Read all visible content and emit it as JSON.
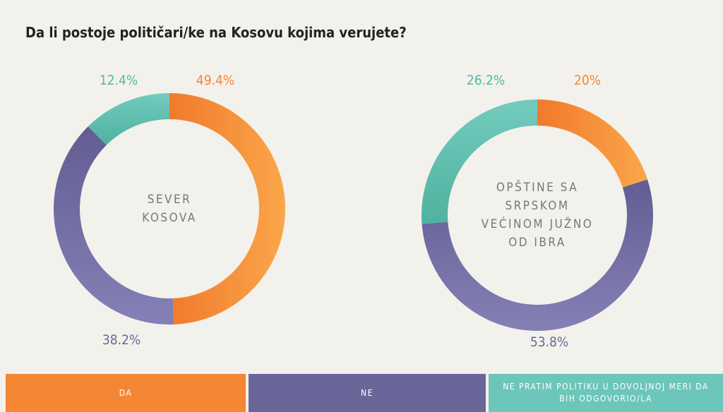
{
  "title": "Da li postoje političari/ke na Kosovu kojima verujete?",
  "chart_data": [
    {
      "type": "pie",
      "title": "SEVER KOSOVA",
      "categories": [
        "DA",
        "NE",
        "NE PRATIM POLITIKU U DOVOLJNOJ MERI DA BIH ODGOVORIO/LA"
      ],
      "values": [
        49.4,
        38.2,
        12.4
      ],
      "value_labels": [
        "49.4%",
        "38.2%",
        "12.4%"
      ],
      "colors": [
        "#f58634",
        "#6b6699",
        "#6cc6b9"
      ]
    },
    {
      "type": "pie",
      "title": "OPŠTINE SA SRPSKOM VEĆINOM JUŽNO OD IBRA",
      "categories": [
        "DA",
        "NE",
        "NE PRATIM POLITIKU U DOVOLJNOJ MERI DA BIH ODGOVORIO/LA"
      ],
      "values": [
        20,
        53.8,
        26.2
      ],
      "value_labels": [
        "20%",
        "53.8%",
        "26.2%"
      ],
      "colors": [
        "#f58634",
        "#6b6699",
        "#6cc6b9"
      ]
    }
  ]
}
